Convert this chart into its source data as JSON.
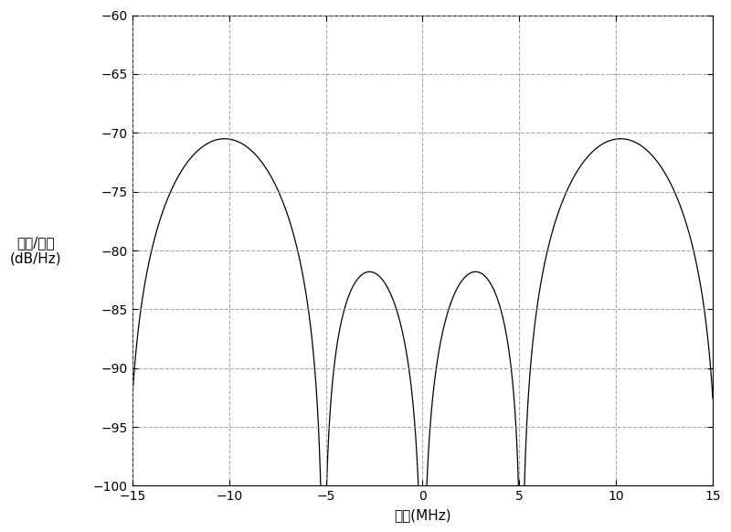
{
  "title": "",
  "xlabel": "频率(MHz)",
  "ylabel_line1": "功率/频率",
  "ylabel_line2": "(dB/Hz)",
  "xlim": [
    -15,
    15
  ],
  "ylim": [
    -100,
    -60
  ],
  "xticks": [
    -15,
    -10,
    -5,
    0,
    5,
    10,
    15
  ],
  "yticks": [
    -100,
    -95,
    -90,
    -85,
    -80,
    -75,
    -70,
    -65,
    -60
  ],
  "grid_color": "#999999",
  "line_color": "#000000",
  "background_color": "#ffffff",
  "boc_m": 10,
  "boc_n": 5,
  "f0_MHz": 1.023,
  "peak_dB": -70.5,
  "figsize": [
    8.0,
    5.82
  ],
  "dpi": 100
}
